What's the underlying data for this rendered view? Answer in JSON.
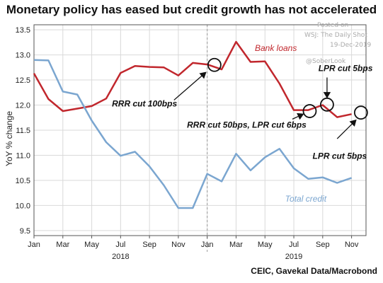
{
  "title": "Monetary policy has eased but credit growth has not accelerated",
  "source": "CEIC, Gavekal Data/Macrobond",
  "watermark": {
    "posted": "Posted on",
    "source": "WSJ: The Daily Shot",
    "date": "19-Dec-2019",
    "handle": "@SoberLook"
  },
  "colors": {
    "bank_loans": "#c1272d",
    "total_credit": "#7ba6d0",
    "grid": "#d9d9d9",
    "axis": "#555555"
  },
  "chart_data": {
    "type": "line",
    "ylabel": "YoY % change",
    "ylim": [
      9.4,
      13.6
    ],
    "yticks": [
      9.5,
      10.0,
      10.5,
      11.0,
      11.5,
      12.0,
      12.5,
      13.0,
      13.5
    ],
    "x_month_index_range": [
      0,
      23
    ],
    "xtick_labels": [
      {
        "m": 0,
        "label": "Jan"
      },
      {
        "m": 2,
        "label": "Mar"
      },
      {
        "m": 4,
        "label": "May"
      },
      {
        "m": 6,
        "label": "Jul"
      },
      {
        "m": 8,
        "label": "Sep"
      },
      {
        "m": 10,
        "label": "Nov"
      },
      {
        "m": 12,
        "label": "Jan"
      },
      {
        "m": 14,
        "label": "Mar"
      },
      {
        "m": 16,
        "label": "May"
      },
      {
        "m": 18,
        "label": "Jul"
      },
      {
        "m": 20,
        "label": "Sep"
      },
      {
        "m": 22,
        "label": "Nov"
      }
    ],
    "year_labels": [
      {
        "m": 6,
        "label": "2018"
      },
      {
        "m": 18,
        "label": "2019"
      }
    ],
    "year_divider_m": 12,
    "grid": true,
    "series": [
      {
        "name": "Bank loans",
        "color": "#c1272d",
        "x": [
          0,
          1,
          2,
          3,
          4,
          5,
          6,
          7,
          8,
          9,
          10,
          11,
          12,
          13,
          14,
          15,
          16,
          17,
          18,
          19,
          20,
          21,
          22
        ],
        "values": [
          12.63,
          12.12,
          11.88,
          11.93,
          11.98,
          12.13,
          12.64,
          12.78,
          12.76,
          12.75,
          12.59,
          12.84,
          12.81,
          12.71,
          13.26,
          12.86,
          12.87,
          12.43,
          11.9,
          11.9,
          12.0,
          11.76,
          11.82
        ]
      },
      {
        "name": "Total credit",
        "color": "#7ba6d0",
        "x": [
          0,
          1,
          2,
          3,
          4,
          5,
          6,
          7,
          8,
          9,
          10,
          11,
          12,
          13,
          14,
          15,
          16,
          17,
          18,
          19,
          20,
          21,
          22
        ],
        "values": [
          12.9,
          12.89,
          12.27,
          12.21,
          11.69,
          11.26,
          10.99,
          11.07,
          10.78,
          10.4,
          9.95,
          9.95,
          10.63,
          10.48,
          11.03,
          10.7,
          10.96,
          11.13,
          10.74,
          10.53,
          10.56,
          10.45,
          10.55
        ]
      }
    ],
    "annotations": [
      {
        "text": "RRR cut 100bps",
        "circle_m": 12.5,
        "circle_v": 12.8,
        "label_m": 5.4,
        "label_v": 11.97,
        "arrow_from_m": 9.7,
        "arrow_from_v": 12.1,
        "arrow_to_m": 11.9,
        "arrow_to_v": 12.65
      },
      {
        "text": "RRR cut 50bps, LPR cut 6bps",
        "circle_m": 19.1,
        "circle_v": 11.88,
        "label_m": 10.6,
        "label_v": 11.55,
        "arrow_from_m": 17.9,
        "arrow_from_v": 11.72,
        "arrow_to_m": 18.65,
        "arrow_to_v": 11.82
      },
      {
        "text": "LPR cut 5bps",
        "circle_m": 20.3,
        "circle_v": 12.01,
        "label_m": 19.7,
        "label_v": 12.68,
        "arrow_from_m": 20.3,
        "arrow_from_v": 12.55,
        "arrow_to_m": 20.3,
        "arrow_to_v": 12.15
      },
      {
        "text": "LPR cut 5bps",
        "circle_m": 22.65,
        "circle_v": 11.85,
        "label_m": 19.3,
        "label_v": 10.93,
        "arrow_from_m": 21.0,
        "arrow_from_v": 11.33,
        "arrow_to_m": 22.3,
        "arrow_to_v": 11.7
      }
    ],
    "series_labels": [
      {
        "text": "Bank loans",
        "m": 15.3,
        "v": 13.08,
        "color": "#c1272d"
      },
      {
        "text": "Total credit",
        "m": 17.4,
        "v": 10.08,
        "color": "#7ba6d0"
      }
    ]
  }
}
